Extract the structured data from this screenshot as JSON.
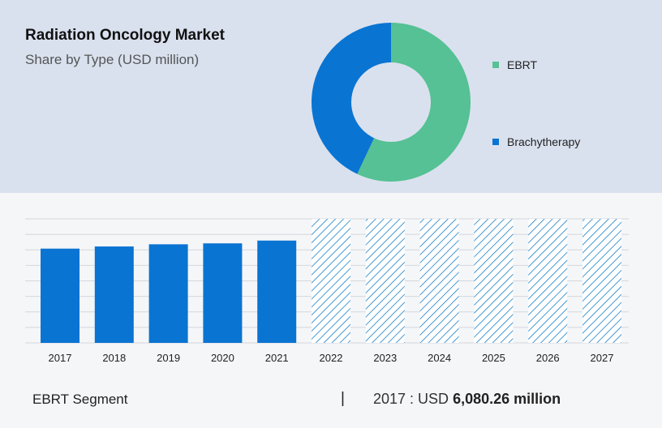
{
  "header": {
    "title": "Radiation Oncology Market",
    "subtitle": "Share by Type (USD million)"
  },
  "chart_data": [
    {
      "type": "pie",
      "variant": "donut",
      "title": "Radiation Oncology Market",
      "subtitle": "Share by Type (USD million)",
      "slices": [
        {
          "label": "EBRT",
          "value": 57,
          "color": "#55c194"
        },
        {
          "label": "Brachytherapy",
          "value": 43,
          "color": "#0a74d2"
        }
      ],
      "legend": "right"
    },
    {
      "type": "bar",
      "categories": [
        "2017",
        "2018",
        "2019",
        "2020",
        "2021",
        "2022",
        "2023",
        "2024",
        "2025",
        "2026",
        "2027"
      ],
      "values": [
        6080.26,
        6220,
        6360,
        6420,
        6600,
        null,
        null,
        null,
        null,
        null,
        null
      ],
      "forecast_categories": [
        "2022",
        "2023",
        "2024",
        "2025",
        "2026",
        "2027"
      ],
      "ylim": [
        0,
        8000
      ],
      "grid": true,
      "bar_color": "#0a74d2",
      "forecast_color": "#1a7fc8"
    }
  ],
  "footer": {
    "segment": "EBRT Segment",
    "divider": "|",
    "value_prefix": "2017 : USD ",
    "value_bold": "6,080.26 million"
  }
}
